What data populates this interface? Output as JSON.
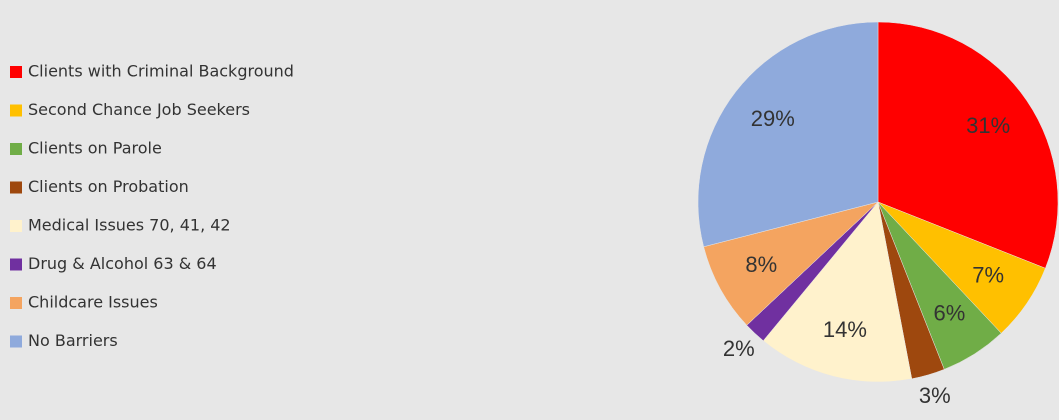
{
  "chart_data": {
    "type": "pie",
    "categories": [
      "Clients with Criminal Background",
      "Second Chance Job Seekers",
      "Clients on Parole",
      "Clients on Probation",
      "Medical Issues 70, 41, 42",
      "Drug & Alcohol 63 & 64",
      "Childcare Issues",
      "No Barriers"
    ],
    "values": [
      31,
      7,
      6,
      3,
      14,
      2,
      8,
      29
    ],
    "value_labels": [
      "31%",
      "7%",
      "6%",
      "3%",
      "14%",
      "2%",
      "8%",
      "29%"
    ],
    "colors": [
      "#ff0000",
      "#ffc000",
      "#70ad47",
      "#9e480e",
      "#fff2cc",
      "#7030a0",
      "#f4a460",
      "#8faadc"
    ],
    "legend": "left"
  }
}
